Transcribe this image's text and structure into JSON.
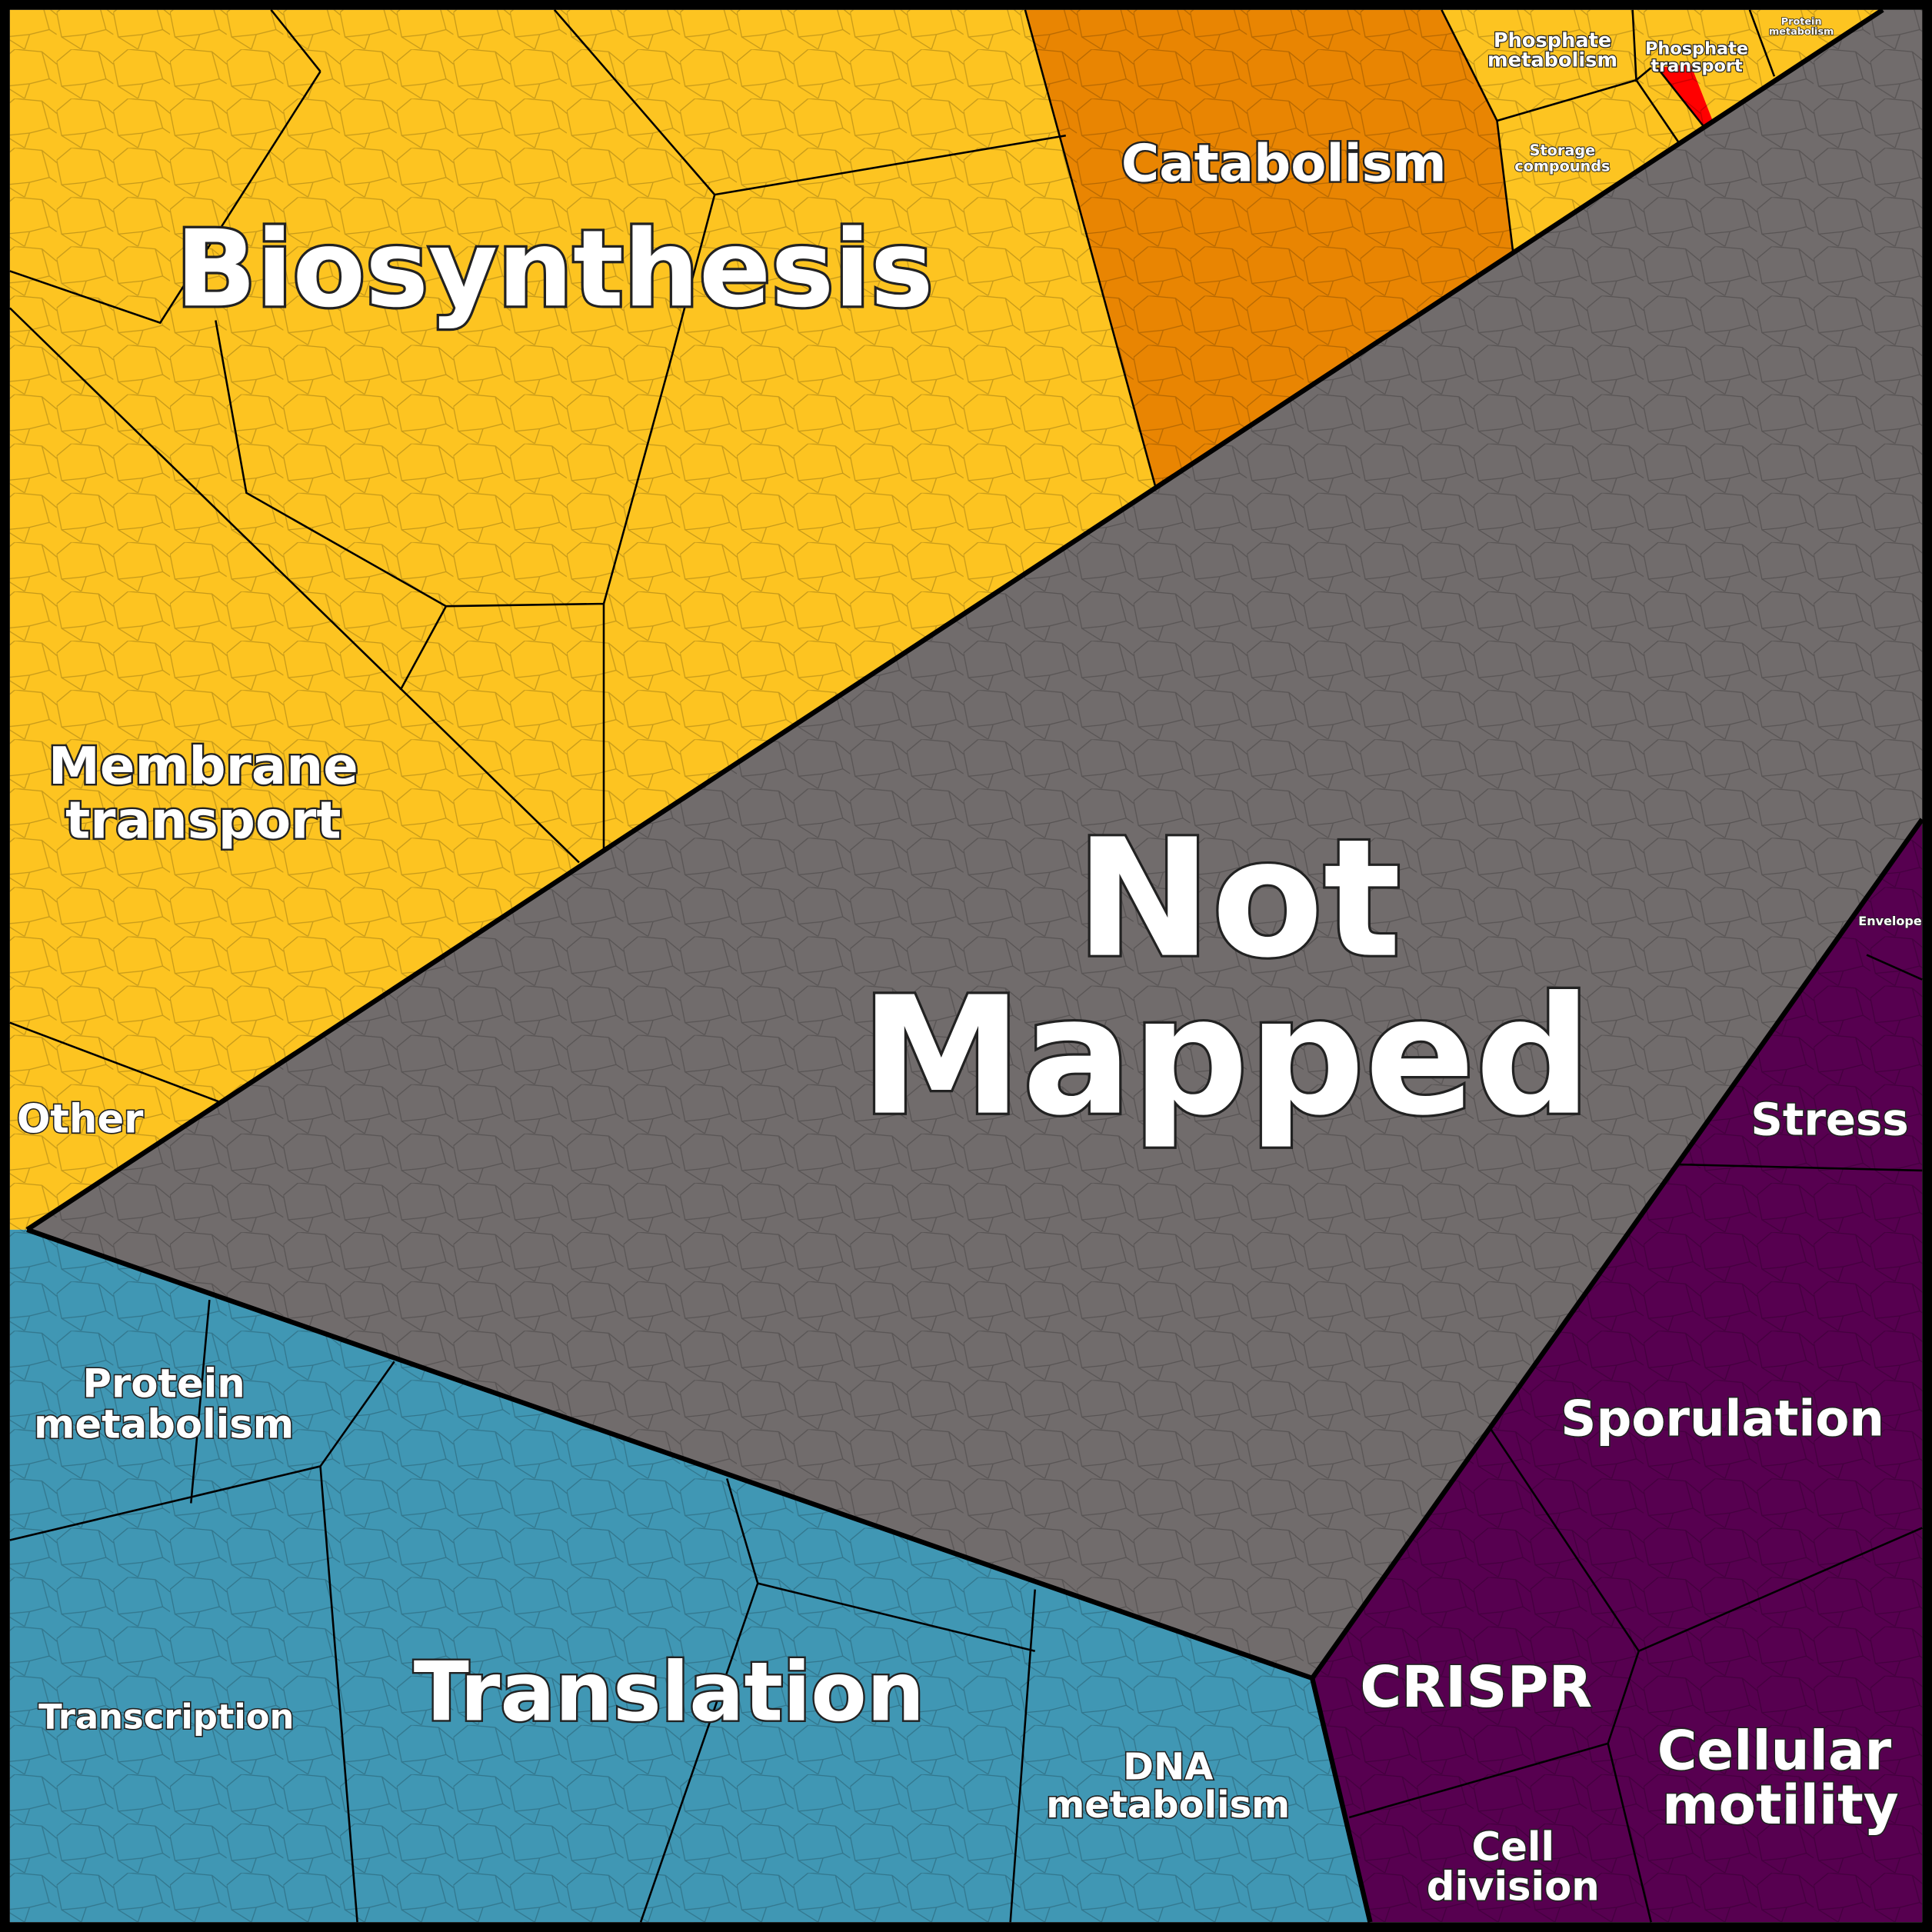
{
  "regions": [
    {
      "label": [
        "Biosynthesis"
      ]
    },
    {
      "label": [
        "Membrane",
        "transport"
      ]
    },
    {
      "label": [
        "Other"
      ]
    },
    {
      "label": [
        "Catabolism"
      ]
    },
    {
      "label": [
        "Phosphate",
        "metabolism"
      ]
    },
    {
      "label": [
        "Phosphate",
        "transport"
      ]
    },
    {
      "label": [
        "Protein",
        "metabolism"
      ]
    },
    {
      "label": [
        "Storage",
        "compounds"
      ]
    },
    {
      "label": [
        "Not",
        "Mapped"
      ]
    },
    {
      "label": [
        "Envelope"
      ]
    },
    {
      "label": [
        "Stress"
      ]
    },
    {
      "label": [
        "Sporulation"
      ]
    },
    {
      "label": [
        "CRISPR"
      ]
    },
    {
      "label": [
        "Cellular",
        "motility"
      ]
    },
    {
      "label": [
        "Cell",
        "division"
      ]
    },
    {
      "label": [
        "Protein",
        "metabolism"
      ]
    },
    {
      "label": [
        "Transcription"
      ]
    },
    {
      "label": [
        "Translation"
      ]
    },
    {
      "label": [
        "DNA",
        "metabolism"
      ]
    }
  ]
}
